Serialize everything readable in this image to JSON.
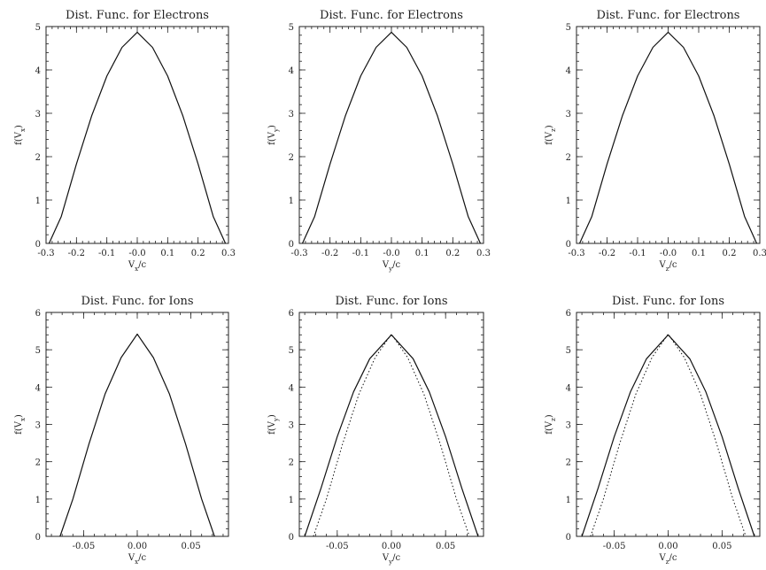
{
  "chart_data": [
    {
      "type": "line",
      "title": "Dist. Func. for Electrons",
      "xlabel": "V_x/c",
      "ylabel": "f(V_x)",
      "xlim": [
        -0.3,
        0.3
      ],
      "ylim": [
        0,
        5
      ],
      "xticks": [
        -0.3,
        -0.2,
        -0.1,
        0.0,
        0.1,
        0.2,
        0.3
      ],
      "xtick_labels": [
        "-0.3",
        "-0.2",
        "-0.1",
        "-0.0",
        "0.1",
        "0.2",
        "0.3"
      ],
      "yticks": [
        0,
        1,
        2,
        3,
        4,
        5
      ],
      "ytick_labels": [
        "0",
        "1",
        "2",
        "3",
        "4",
        "5"
      ],
      "series": [
        {
          "style": "solid",
          "x": [
            -0.29,
            -0.25,
            -0.2,
            -0.15,
            -0.1,
            -0.05,
            0.0,
            0.05,
            0.1,
            0.15,
            0.2,
            0.25,
            0.29
          ],
          "y": [
            0.0,
            0.62,
            1.83,
            2.94,
            3.86,
            4.52,
            4.87,
            4.52,
            3.86,
            2.94,
            1.83,
            0.62,
            0.0
          ]
        }
      ]
    },
    {
      "type": "line",
      "title": "Dist. Func. for Electrons",
      "xlabel": "V_y/c",
      "ylabel": "f(V_y)",
      "xlim": [
        -0.3,
        0.3
      ],
      "ylim": [
        0,
        5
      ],
      "xticks": [
        -0.3,
        -0.2,
        -0.1,
        0.0,
        0.1,
        0.2,
        0.3
      ],
      "xtick_labels": [
        "-0.3",
        "-0.2",
        "-0.1",
        "-0.0",
        "0.1",
        "0.2",
        "0.3"
      ],
      "yticks": [
        0,
        1,
        2,
        3,
        4,
        5
      ],
      "ytick_labels": [
        "0",
        "1",
        "2",
        "3",
        "4",
        "5"
      ],
      "series": [
        {
          "style": "solid",
          "x": [
            -0.29,
            -0.25,
            -0.2,
            -0.15,
            -0.1,
            -0.05,
            0.0,
            0.05,
            0.1,
            0.15,
            0.2,
            0.25,
            0.29
          ],
          "y": [
            0.0,
            0.62,
            1.83,
            2.94,
            3.86,
            4.52,
            4.87,
            4.52,
            3.86,
            2.94,
            1.83,
            0.62,
            0.0
          ]
        }
      ]
    },
    {
      "type": "line",
      "title": "Dist. Func. for Electrons",
      "xlabel": "V_z/c",
      "ylabel": "f(V_z)",
      "xlim": [
        -0.3,
        0.3
      ],
      "ylim": [
        0,
        5
      ],
      "xticks": [
        -0.3,
        -0.2,
        -0.1,
        0.0,
        0.1,
        0.2,
        0.3
      ],
      "xtick_labels": [
        "-0.3",
        "-0.2",
        "-0.1",
        "-0.0",
        "0.1",
        "0.2",
        "0.3"
      ],
      "yticks": [
        0,
        1,
        2,
        3,
        4,
        5
      ],
      "ytick_labels": [
        "0",
        "1",
        "2",
        "3",
        "4",
        "5"
      ],
      "series": [
        {
          "style": "solid",
          "x": [
            -0.29,
            -0.25,
            -0.2,
            -0.15,
            -0.1,
            -0.05,
            0.0,
            0.05,
            0.1,
            0.15,
            0.2,
            0.25,
            0.29
          ],
          "y": [
            0.0,
            0.62,
            1.83,
            2.94,
            3.86,
            4.52,
            4.87,
            4.52,
            3.86,
            2.94,
            1.83,
            0.62,
            0.0
          ]
        }
      ]
    },
    {
      "type": "line",
      "title": "Dist. Func. for Ions",
      "xlabel": "V_x/c",
      "ylabel": "f(V_x)",
      "xlim": [
        -0.085,
        0.085
      ],
      "ylim": [
        0,
        6
      ],
      "xticks": [
        -0.05,
        0.0,
        0.05
      ],
      "xtick_labels": [
        "-0.05",
        "0.00",
        "0.05"
      ],
      "yticks": [
        0,
        1,
        2,
        3,
        4,
        5,
        6
      ],
      "ytick_labels": [
        "0",
        "1",
        "2",
        "3",
        "4",
        "5",
        "6"
      ],
      "series": [
        {
          "style": "solid",
          "x": [
            -0.072,
            -0.06,
            -0.045,
            -0.03,
            -0.015,
            0.0,
            0.015,
            0.03,
            0.045,
            0.06,
            0.072
          ],
          "y": [
            0.0,
            1.0,
            2.48,
            3.81,
            4.79,
            5.42,
            4.79,
            3.81,
            2.48,
            1.0,
            0.0
          ]
        }
      ]
    },
    {
      "type": "line",
      "title": "Dist. Func. for Ions",
      "xlabel": "V_y/c",
      "ylabel": "f(V_y)",
      "xlim": [
        -0.085,
        0.085
      ],
      "ylim": [
        0,
        6
      ],
      "xticks": [
        -0.05,
        0.0,
        0.05
      ],
      "xtick_labels": [
        "-0.05",
        "0.00",
        "0.05"
      ],
      "yticks": [
        0,
        1,
        2,
        3,
        4,
        5,
        6
      ],
      "ytick_labels": [
        "0",
        "1",
        "2",
        "3",
        "4",
        "5",
        "6"
      ],
      "series": [
        {
          "style": "solid",
          "x": [
            -0.08,
            -0.065,
            -0.05,
            -0.035,
            -0.02,
            0.0,
            0.02,
            0.035,
            0.05,
            0.065,
            0.08
          ],
          "y": [
            0.0,
            1.29,
            2.67,
            3.87,
            4.76,
            5.4,
            4.76,
            3.87,
            2.67,
            1.29,
            0.0
          ]
        },
        {
          "style": "dotted",
          "x": [
            -0.072,
            -0.06,
            -0.045,
            -0.03,
            -0.015,
            0.0,
            0.015,
            0.03,
            0.045,
            0.06,
            0.072
          ],
          "y": [
            0.0,
            1.0,
            2.48,
            3.81,
            4.79,
            5.42,
            4.79,
            3.81,
            2.48,
            1.0,
            0.0
          ]
        }
      ]
    },
    {
      "type": "line",
      "title": "Dist. Func. for Ions",
      "xlabel": "V_z/c",
      "ylabel": "f(V_z)",
      "xlim": [
        -0.085,
        0.085
      ],
      "ylim": [
        0,
        6
      ],
      "xticks": [
        -0.05,
        0.0,
        0.05
      ],
      "xtick_labels": [
        "-0.05",
        "0.00",
        "0.05"
      ],
      "yticks": [
        0,
        1,
        2,
        3,
        4,
        5,
        6
      ],
      "ytick_labels": [
        "0",
        "1",
        "2",
        "3",
        "4",
        "5",
        "6"
      ],
      "series": [
        {
          "style": "solid",
          "x": [
            -0.08,
            -0.065,
            -0.05,
            -0.035,
            -0.02,
            0.0,
            0.02,
            0.035,
            0.05,
            0.065,
            0.08
          ],
          "y": [
            0.0,
            1.29,
            2.67,
            3.87,
            4.76,
            5.4,
            4.76,
            3.87,
            2.67,
            1.29,
            0.0
          ]
        },
        {
          "style": "dotted",
          "x": [
            -0.072,
            -0.06,
            -0.045,
            -0.03,
            -0.015,
            0.0,
            0.015,
            0.03,
            0.045,
            0.06,
            0.072
          ],
          "y": [
            0.0,
            1.0,
            2.48,
            3.81,
            4.79,
            5.42,
            4.79,
            3.81,
            2.48,
            1.0,
            0.0
          ]
        }
      ]
    }
  ]
}
